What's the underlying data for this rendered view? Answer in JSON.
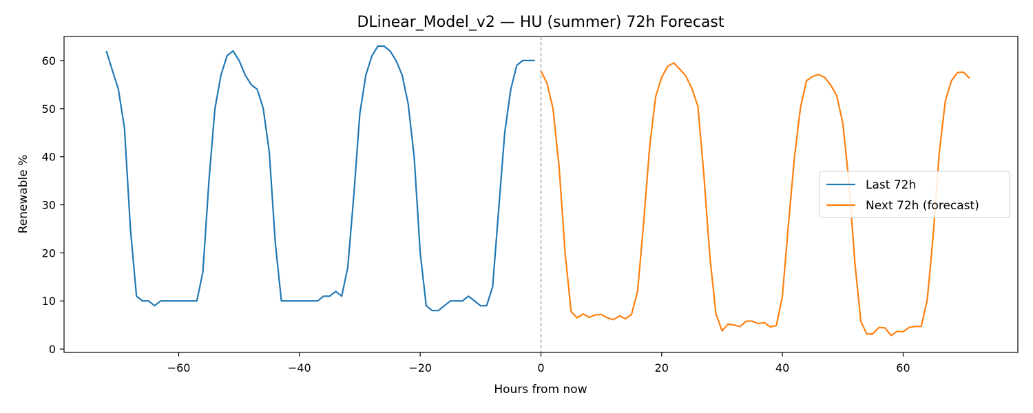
{
  "chart_data": {
    "type": "line",
    "title": "DLinear_Model_v2 — HU (summer) 72h Forecast",
    "xlabel": "Hours from now",
    "ylabel": "Renewable %",
    "xlim": [
      -79,
      79
    ],
    "ylim": [
      -0.7,
      65.0
    ],
    "xticks": [
      -60,
      -40,
      -20,
      0,
      20,
      40,
      60
    ],
    "xtick_labels": [
      "−60",
      "−40",
      "−20",
      "0",
      "20",
      "40",
      "60"
    ],
    "yticks": [
      0,
      10,
      20,
      30,
      40,
      50,
      60
    ],
    "ytick_labels": [
      "0",
      "10",
      "20",
      "30",
      "40",
      "50",
      "60"
    ],
    "grid": false,
    "vline": {
      "x": 0,
      "style": "dashed",
      "color": "#999999"
    },
    "legend": {
      "placement": "center-right"
    },
    "series": [
      {
        "name": "Last 72h",
        "color": "#1f77b4",
        "x": [
          -72,
          -71,
          -70,
          -69,
          -68,
          -67,
          -66,
          -65,
          -64,
          -63,
          -62,
          -61,
          -60,
          -59,
          -58,
          -57,
          -56,
          -55,
          -54,
          -53,
          -52,
          -51,
          -50,
          -49,
          -48,
          -47,
          -46,
          -45,
          -44,
          -43,
          -42,
          -41,
          -40,
          -39,
          -38,
          -37,
          -36,
          -35,
          -34,
          -33,
          -32,
          -31,
          -30,
          -29,
          -28,
          -27,
          -26,
          -25,
          -24,
          -23,
          -22,
          -21,
          -20,
          -19,
          -18,
          -17,
          -16,
          -15,
          -14,
          -13,
          -12,
          -11,
          -10,
          -9,
          -8,
          -7,
          -6,
          -5,
          -4,
          -3,
          -2,
          -1
        ],
        "y": [
          62,
          58,
          54,
          46,
          25,
          11,
          10,
          10,
          9,
          10,
          10,
          10,
          10,
          10,
          10,
          10,
          16,
          35,
          50,
          57,
          61,
          62,
          60,
          57,
          55,
          54,
          50,
          41,
          22,
          10,
          10,
          10,
          10,
          10,
          10,
          10,
          11,
          11,
          12,
          11,
          17,
          32,
          49,
          57,
          61,
          63,
          63,
          62,
          60,
          57,
          51,
          40,
          20,
          9,
          8,
          8,
          9,
          10,
          10,
          10,
          11,
          10,
          9,
          9,
          13,
          29,
          45,
          54,
          59,
          60,
          60,
          60
        ]
      },
      {
        "name": "Next 72h (forecast)",
        "color": "#ff7f0e",
        "x": [
          0,
          1,
          2,
          3,
          4,
          5,
          6,
          7,
          8,
          9,
          10,
          11,
          12,
          13,
          14,
          15,
          16,
          17,
          18,
          19,
          20,
          21,
          22,
          23,
          24,
          25,
          26,
          27,
          28,
          29,
          30,
          31,
          32,
          33,
          34,
          35,
          36,
          37,
          38,
          39,
          40,
          41,
          42,
          43,
          44,
          45,
          46,
          47,
          48,
          49,
          50,
          51,
          52,
          53,
          54,
          55,
          56,
          57,
          58,
          59,
          60,
          61,
          62,
          63,
          64,
          65,
          66,
          67,
          68,
          69,
          70,
          71
        ],
        "y": [
          57.8,
          55.3,
          50.0,
          38.0,
          20.0,
          7.8,
          6.5,
          7.3,
          6.6,
          7.1,
          7.2,
          6.5,
          6.1,
          6.9,
          6.3,
          7.2,
          12.0,
          26.0,
          42.0,
          52.5,
          56.5,
          58.8,
          59.5,
          58.2,
          56.8,
          54.2,
          50.5,
          36.0,
          19.0,
          7.3,
          3.8,
          5.2,
          5.0,
          4.7,
          5.8,
          5.8,
          5.3,
          5.5,
          4.6,
          4.9,
          11.0,
          26.0,
          40.0,
          50.3,
          55.8,
          56.7,
          57.1,
          56.5,
          54.9,
          52.7,
          47.0,
          35.0,
          18.0,
          5.7,
          3.1,
          3.2,
          4.5,
          4.4,
          2.8,
          3.7,
          3.6,
          4.5,
          4.7,
          4.7,
          10.3,
          24.0,
          41.0,
          51.7,
          55.8,
          57.5,
          57.6,
          56.3
        ]
      }
    ]
  }
}
